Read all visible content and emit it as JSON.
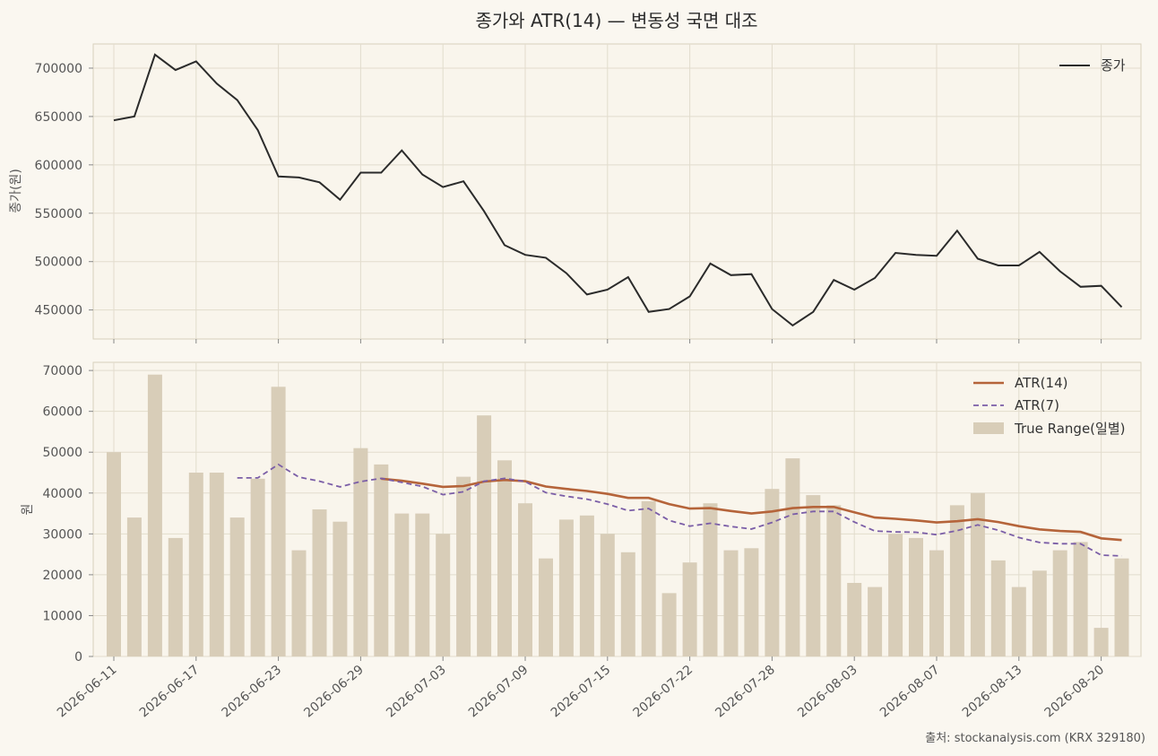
{
  "title": "종가와 ATR(14) — 변동성 국면 대조",
  "source": "출처: stockanalysis.com (KRX 329180)",
  "colors": {
    "background": "#faf7f0",
    "plot_bg": "#f9f5ec",
    "grid": "#e2dccd",
    "frame": "#d8d0bd",
    "close": "#2b2b2b",
    "atr14": "#b5643a",
    "atr7": "#7b5ea7",
    "tr": "#d8cdb8"
  },
  "chart_data": [
    {
      "type": "line",
      "ylabel": "종가(원)",
      "ylim": [
        420000,
        725000
      ],
      "yticks": [
        450000,
        500000,
        550000,
        600000,
        650000,
        700000
      ],
      "yticklabels": [
        "450000",
        "500000",
        "550000",
        "600000",
        "650000",
        "700000"
      ],
      "legend_position": "top-right",
      "grid": true,
      "series": [
        {
          "name": "종가",
          "values": [
            646000,
            650000,
            714000,
            698000,
            707000,
            684000,
            667000,
            636000,
            588000,
            587000,
            582000,
            564000,
            592000,
            592000,
            615000,
            590000,
            577000,
            583000,
            552000,
            517000,
            507000,
            504000,
            488000,
            466000,
            471000,
            484000,
            448000,
            451000,
            464000,
            498000,
            486000,
            487000,
            451000,
            434000,
            448000,
            481000,
            471000,
            483000,
            509000,
            507000,
            506000,
            532000,
            503000,
            496000,
            496000,
            510000,
            490000,
            474000,
            475000,
            453000
          ]
        }
      ]
    },
    {
      "type": "bar",
      "ylabel": "원",
      "ylim": [
        0,
        72000
      ],
      "yticks": [
        0,
        10000,
        20000,
        30000,
        40000,
        50000,
        60000,
        70000
      ],
      "yticklabels": [
        "0",
        "10000",
        "20000",
        "30000",
        "40000",
        "50000",
        "60000",
        "70000"
      ],
      "legend_position": "top-right",
      "grid": true,
      "x_tick_labels": [
        "2026-06-11",
        "2026-06-17",
        "2026-06-23",
        "2026-06-29",
        "2026-07-03",
        "2026-07-09",
        "2026-07-15",
        "2026-07-22",
        "2026-07-28",
        "2026-08-03",
        "2026-08-07",
        "2026-08-13",
        "2026-08-20"
      ],
      "x_tick_index": [
        0,
        4,
        8,
        12,
        16,
        20,
        24,
        28,
        32,
        36,
        40,
        44,
        48
      ],
      "series": [
        {
          "name": "ATR(14)",
          "type": "line",
          "start_index": 13,
          "values": [
            43500,
            43000,
            42300,
            41500,
            41700,
            42800,
            43200,
            42900,
            41600,
            41000,
            40500,
            39800,
            38800,
            38800,
            37300,
            36200,
            36300,
            35600,
            35000,
            35500,
            36300,
            36600,
            36600,
            35300,
            34000,
            33700,
            33300,
            32800,
            33100,
            33600,
            32900,
            31900,
            31100,
            30700,
            30500,
            28900,
            28500
          ]
        },
        {
          "name": "ATR(7)",
          "type": "dashed-line",
          "start_index": 6,
          "values": [
            43700,
            43700,
            47000,
            43900,
            42900,
            41500,
            42800,
            43600,
            42600,
            41600,
            39600,
            40300,
            42900,
            43600,
            42800,
            40100,
            39200,
            38500,
            37300,
            35700,
            36200,
            33300,
            31900,
            32600,
            31800,
            31200,
            32800,
            34800,
            35500,
            35500,
            32900,
            30700,
            30500,
            30400,
            29800,
            30800,
            32200,
            30900,
            29100,
            27900,
            27600,
            27600,
            24800,
            24600
          ]
        },
        {
          "name": "True Range(일별)",
          "type": "bar",
          "values": [
            50000,
            34000,
            69000,
            29000,
            45000,
            45000,
            34000,
            43500,
            66000,
            26000,
            36000,
            33000,
            51000,
            47000,
            35000,
            35000,
            30000,
            44000,
            59000,
            48000,
            37500,
            24000,
            33500,
            34500,
            30000,
            25500,
            38000,
            15500,
            23000,
            37500,
            26000,
            26500,
            41000,
            48500,
            39500,
            37000,
            18000,
            17000,
            30000,
            29000,
            26000,
            37000,
            40000,
            23500,
            17000,
            21000,
            26000,
            28000,
            7000,
            24000
          ]
        }
      ]
    }
  ]
}
